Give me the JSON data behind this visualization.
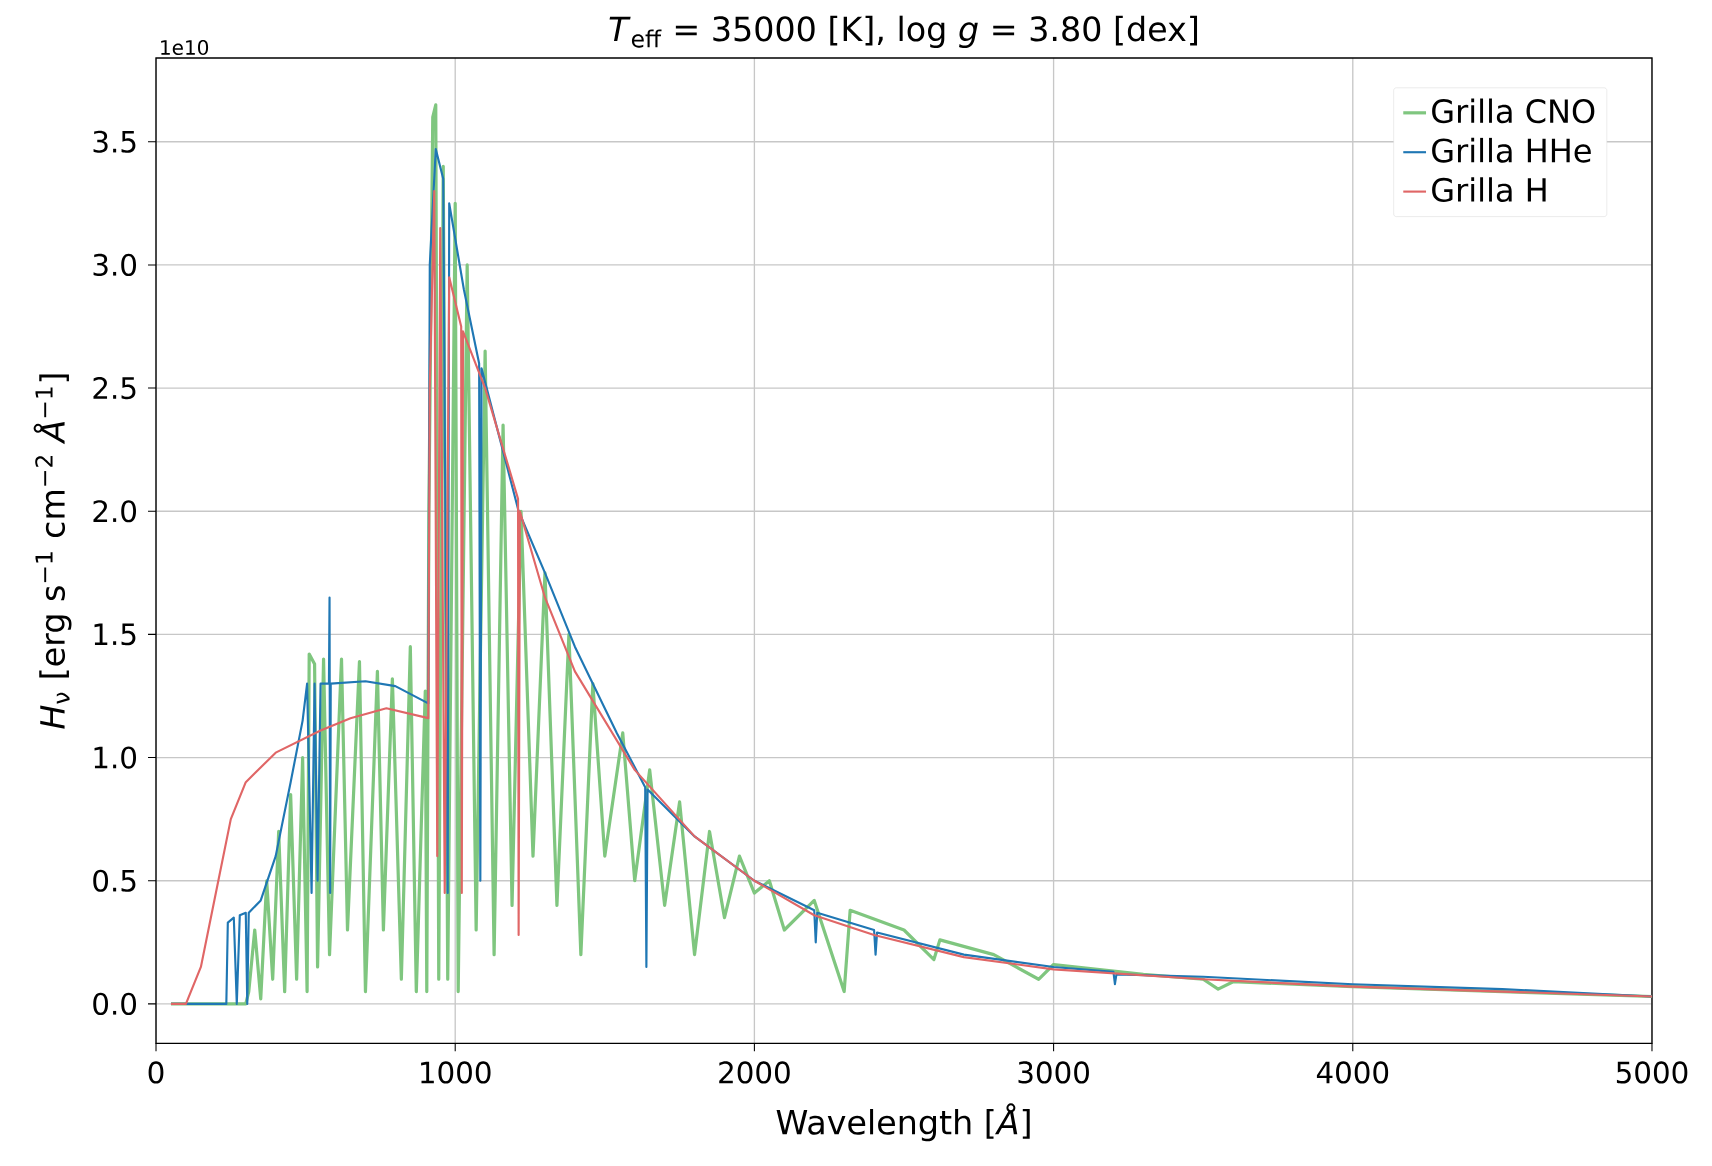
{
  "chart_data": {
    "type": "line",
    "title": "*T*$_{eff}$ = 35000 [K], log *g* = 3.80 [dex]",
    "xlabel": "Wavelength [*Å*]",
    "ylabel": "*H*$_{ν}$ [erg s$^{−1}$ cm$^{−2}$ *Å*$^{−1}$]",
    "annotations": [
      "1e10"
    ],
    "xlim": [
      0,
      5000
    ],
    "ylim": [
      -0.16,
      3.84
    ],
    "xticks": [
      0,
      1000,
      2000,
      3000,
      4000,
      5000
    ],
    "yticks": [
      {
        "value": 0,
        "label": "0.0"
      },
      {
        "value": 0.5,
        "label": "0.5"
      },
      {
        "value": 1,
        "label": "1.0"
      },
      {
        "value": 1.5,
        "label": "1.5"
      },
      {
        "value": 2,
        "label": "2.0"
      },
      {
        "value": 2.5,
        "label": "2.5"
      },
      {
        "value": 3,
        "label": "3.0"
      },
      {
        "value": 3.5,
        "label": "3.5"
      }
    ],
    "grid": true,
    "legend": "top right",
    "line_style": "solid",
    "series": [
      {
        "name": "Grilla CNO",
        "color": "#7fc67f",
        "x": [
          50,
          300,
          310,
          330,
          350,
          370,
          390,
          410,
          430,
          450,
          470,
          490,
          505,
          512,
          530,
          540,
          560,
          580,
          620,
          640,
          680,
          700,
          740,
          760,
          790,
          820,
          850,
          870,
          900,
          905,
          912,
          925,
          935,
          945,
          960,
          975,
          1000,
          1010,
          1040,
          1070,
          1100,
          1130,
          1160,
          1190,
          1220,
          1260,
          1300,
          1340,
          1380,
          1420,
          1460,
          1500,
          1560,
          1600,
          1650,
          1700,
          1750,
          1800,
          1850,
          1900,
          1950,
          2000,
          2050,
          2100,
          2200,
          2300,
          2320,
          2500,
          2600,
          2620,
          2800,
          2950,
          3000,
          3300,
          3500,
          3550,
          3600,
          4000,
          4500,
          5000
        ],
        "values": [
          0,
          0,
          0.05,
          0.3,
          0.02,
          0.5,
          0.1,
          0.7,
          0.05,
          0.85,
          0.1,
          1.0,
          0.05,
          1.42,
          1.38,
          0.15,
          1.4,
          0.2,
          1.4,
          0.3,
          1.39,
          0.05,
          1.35,
          0.3,
          1.32,
          0.1,
          1.45,
          0.05,
          1.27,
          0.05,
          2.0,
          3.6,
          3.65,
          0.1,
          3.4,
          0.1,
          3.25,
          0.05,
          3.0,
          0.3,
          2.65,
          0.2,
          2.35,
          0.4,
          2.0,
          0.6,
          1.75,
          0.4,
          1.5,
          0.2,
          1.3,
          0.6,
          1.1,
          0.5,
          0.95,
          0.4,
          0.82,
          0.2,
          0.7,
          0.35,
          0.6,
          0.45,
          0.5,
          0.3,
          0.42,
          0.05,
          0.38,
          0.3,
          0.18,
          0.26,
          0.2,
          0.1,
          0.16,
          0.12,
          0.1,
          0.06,
          0.09,
          0.07,
          0.05,
          0.03
        ]
      },
      {
        "name": "Grilla HHe",
        "color": "#1f77b4",
        "x": [
          50,
          235,
          240,
          260,
          270,
          280,
          300,
          305,
          310,
          350,
          400,
          450,
          490,
          505,
          520,
          530,
          540,
          550,
          578,
          580,
          582,
          584,
          700,
          800,
          910,
          915,
          935,
          960,
          975,
          980,
          1029,
          1080,
          1084,
          1088,
          1212,
          1300,
          1400,
          1540,
          1635,
          1639,
          1643,
          1800,
          2000,
          2200,
          2205,
          2210,
          2400,
          2405,
          2410,
          2700,
          3000,
          3200,
          3205,
          3210,
          3500,
          4000,
          4500,
          5000
        ],
        "values": [
          0,
          0,
          0.33,
          0.35,
          0,
          0.36,
          0.37,
          0,
          0.37,
          0.42,
          0.6,
          0.9,
          1.15,
          1.3,
          0.45,
          1.3,
          0.5,
          1.3,
          1.3,
          1.65,
          0.45,
          1.3,
          1.31,
          1.29,
          1.22,
          3.0,
          3.47,
          3.35,
          0.45,
          3.25,
          2.9,
          2.6,
          0.5,
          2.58,
          2.0,
          1.75,
          1.45,
          1.1,
          0.88,
          0.15,
          0.87,
          0.68,
          0.5,
          0.38,
          0.25,
          0.37,
          0.3,
          0.2,
          0.29,
          0.2,
          0.15,
          0.13,
          0.08,
          0.12,
          0.11,
          0.08,
          0.06,
          0.03
        ]
      },
      {
        "name": "Grilla H",
        "color": "#e06666",
        "x": [
          50,
          100,
          150,
          200,
          250,
          300,
          400,
          550,
          650,
          770,
          910,
          915,
          930,
          940,
          950,
          965,
          980,
          1020,
          1022,
          1026,
          1100,
          1210,
          1212,
          1216,
          1300,
          1400,
          1500,
          1600,
          1800,
          2000,
          2200,
          2400,
          2700,
          3000,
          3500,
          4000,
          4500,
          5000
        ],
        "values": [
          0,
          0,
          0.15,
          0.45,
          0.75,
          0.9,
          1.02,
          1.11,
          1.16,
          1.2,
          1.16,
          2.5,
          3.3,
          0.6,
          3.15,
          0.45,
          2.95,
          2.75,
          0.45,
          2.73,
          2.5,
          2.05,
          0.28,
          2.0,
          1.65,
          1.35,
          1.15,
          0.95,
          0.68,
          0.5,
          0.36,
          0.28,
          0.19,
          0.14,
          0.1,
          0.07,
          0.05,
          0.03
        ]
      }
    ]
  }
}
